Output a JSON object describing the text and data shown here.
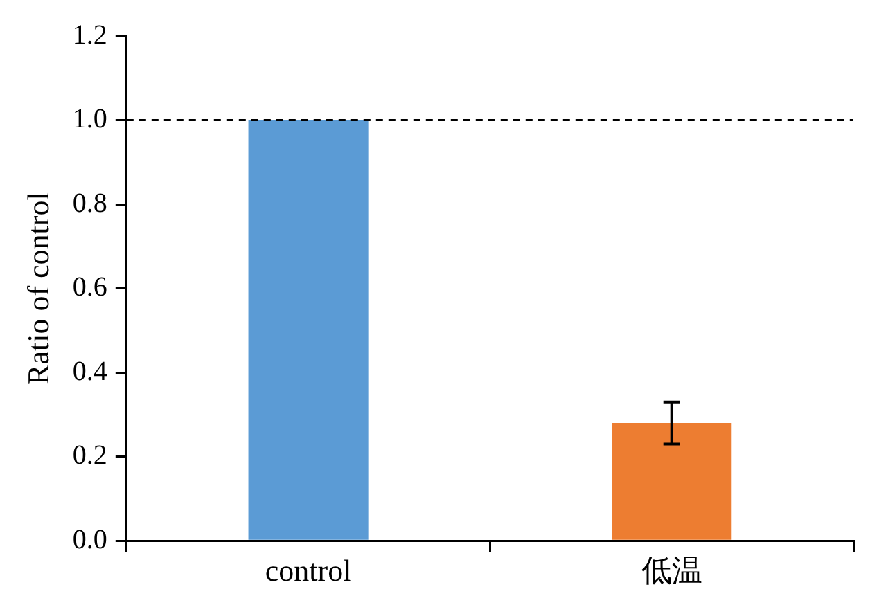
{
  "chart_data": {
    "type": "bar",
    "ylabel": "Ratio of control",
    "categories": [
      "control",
      "低温"
    ],
    "values": [
      1.0,
      0.28
    ],
    "colors": [
      "#5b9bd5",
      "#ed7d31"
    ],
    "errors": [
      null,
      0.05
    ],
    "ylim": [
      0,
      1.2
    ],
    "yticks": [
      {
        "value": 0,
        "label": "0.0"
      },
      {
        "value": 0.2,
        "label": "0.2"
      },
      {
        "value": 0.4,
        "label": "0.4"
      },
      {
        "value": 0.6,
        "label": "0.6"
      },
      {
        "value": 0.8,
        "label": "0.8"
      },
      {
        "value": 1.0,
        "label": "1.0"
      },
      {
        "value": 1.2,
        "label": "1.2"
      }
    ],
    "ref_lines": [
      {
        "axis": "y",
        "value": 1.0,
        "color": "#000000",
        "line_style": "dashed"
      }
    ]
  }
}
